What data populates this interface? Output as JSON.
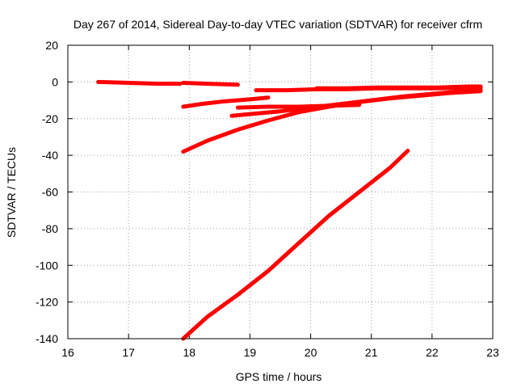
{
  "chart_data": {
    "type": "scatter",
    "title": "Day 267 of 2014, Sidereal Day-to-day VTEC variation (SDTVAR) for receiver cfrm",
    "xlabel": "GPS time / hours",
    "ylabel": "SDTVAR / TECUs",
    "xlim": [
      16,
      23
    ],
    "ylim": [
      -140,
      20
    ],
    "xticks": [
      16,
      17,
      18,
      19,
      20,
      21,
      22,
      23
    ],
    "yticks": [
      -140,
      -120,
      -100,
      -80,
      -60,
      -40,
      -20,
      0,
      20
    ],
    "grid": true,
    "legend": "none",
    "color": "#ff0000",
    "series": [
      {
        "x": [
          16.5,
          17.0,
          17.5,
          17.85
        ],
        "y": [
          0.0,
          -0.5,
          -1.0,
          -1.0
        ]
      },
      {
        "x": [
          17.9,
          18.3,
          18.8
        ],
        "y": [
          -0.5,
          -1.0,
          -1.5
        ]
      },
      {
        "x": [
          17.9,
          18.2,
          18.6,
          19.0,
          19.3
        ],
        "y": [
          -13.5,
          -12.0,
          -10.5,
          -9.5,
          -8.5
        ]
      },
      {
        "x": [
          17.9,
          18.3,
          18.8,
          19.3,
          19.8,
          20.3,
          20.8,
          21.3,
          21.8,
          22.3,
          22.8
        ],
        "y": [
          -38.0,
          -32.0,
          -26.0,
          -21.0,
          -16.5,
          -13.5,
          -11.0,
          -9.0,
          -7.5,
          -6.0,
          -5.0
        ]
      },
      {
        "x": [
          18.7,
          19.0,
          19.5,
          20.0,
          20.5,
          21.0,
          21.5,
          22.0,
          22.5,
          22.8
        ],
        "y": [
          -18.5,
          -17.5,
          -16.0,
          -14.0,
          -12.0,
          -10.0,
          -8.0,
          -6.5,
          -5.0,
          -4.0
        ]
      },
      {
        "x": [
          18.8,
          19.3,
          19.8,
          20.3,
          20.8
        ],
        "y": [
          -14.0,
          -13.5,
          -13.5,
          -13.0,
          -12.5
        ]
      },
      {
        "x": [
          19.1,
          19.6,
          20.1,
          20.6,
          21.1,
          21.6,
          22.1,
          22.6,
          22.8
        ],
        "y": [
          -4.5,
          -4.5,
          -4.0,
          -4.0,
          -3.5,
          -3.5,
          -3.5,
          -3.0,
          -3.0
        ]
      },
      {
        "x": [
          20.1,
          20.6,
          21.1,
          21.6,
          22.1,
          22.6,
          22.8
        ],
        "y": [
          -3.5,
          -3.5,
          -3.0,
          -3.0,
          -3.0,
          -2.5,
          -2.5
        ]
      },
      {
        "x": [
          17.9,
          18.3,
          18.8,
          19.3,
          19.8,
          20.3,
          20.8,
          21.3,
          21.6
        ],
        "y": [
          -140.0,
          -128.0,
          -116.0,
          -103.0,
          -88.0,
          -73.0,
          -60.0,
          -47.0,
          -37.5
        ]
      }
    ]
  }
}
